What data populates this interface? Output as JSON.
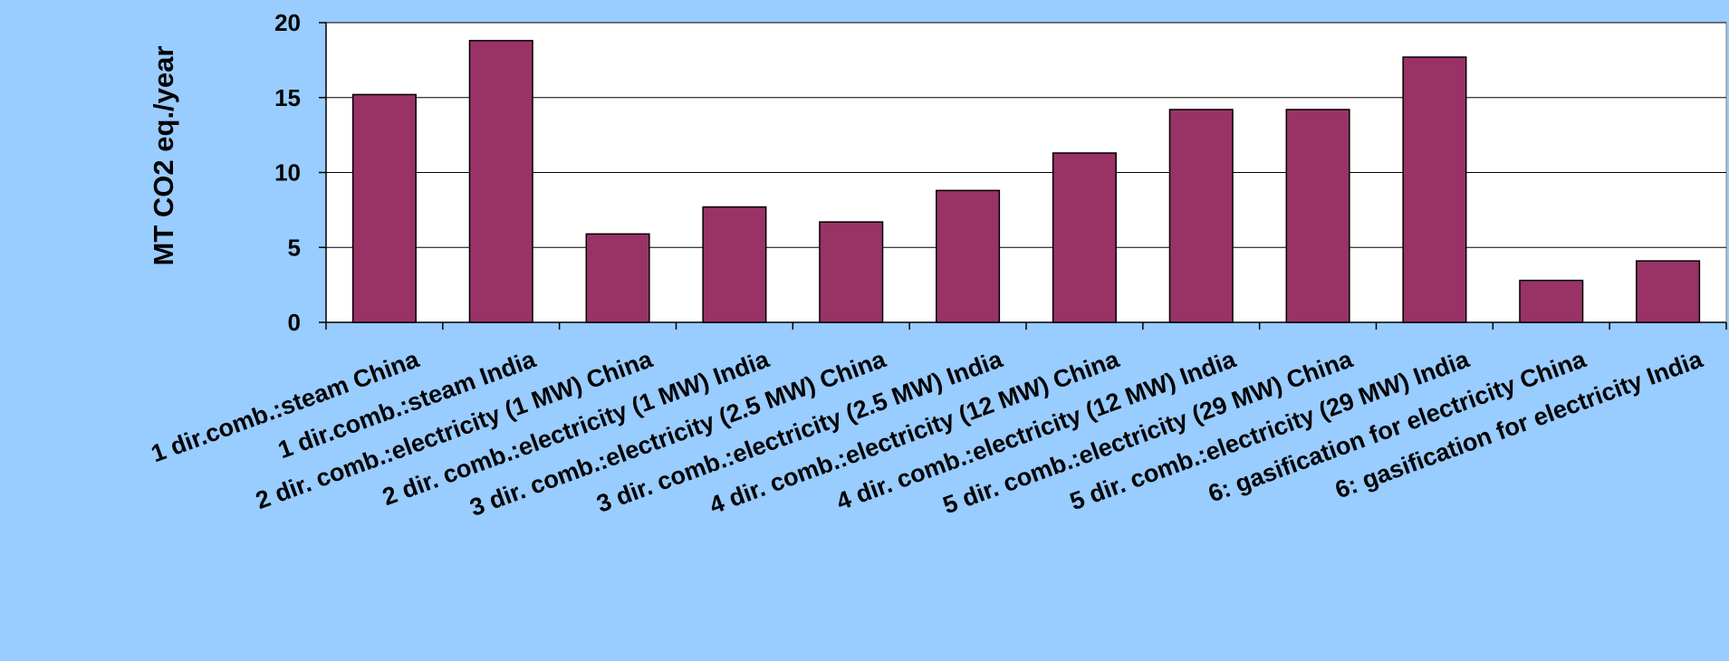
{
  "chart_data": {
    "type": "bar",
    "title": "",
    "xlabel": "",
    "ylabel": "MT CO2 eq./year",
    "ylim": [
      0,
      20
    ],
    "yticks": [
      0,
      5,
      10,
      15,
      20
    ],
    "grid": true,
    "categories": [
      "1 dir.comb.:steam China",
      "1 dir.comb.:steam India",
      "2 dir. comb.:electricity (1 MW) China",
      "2 dir. comb.:electricity (1 MW) India",
      "3 dir. comb.:electricity (2.5 MW) China",
      "3 dir. comb.:electricity (2.5 MW) India",
      "4 dir. comb.:electricity (12 MW) China",
      "4 dir. comb.:electricity (12 MW) India",
      "5 dir. comb.:electricity (29 MW) China",
      "5 dir. comb.:electricity (29 MW) India",
      "6: gasification for electricity China",
      "6: gasification for electricity India"
    ],
    "values": [
      15.2,
      18.8,
      5.9,
      7.7,
      6.7,
      8.8,
      11.3,
      14.2,
      14.2,
      17.7,
      2.8,
      4.1
    ],
    "colors": {
      "background": "#99ccff",
      "plot_area": "#ffffff",
      "bar_fill": "#993366",
      "bar_stroke": "#000000",
      "grid": "#000000"
    }
  }
}
